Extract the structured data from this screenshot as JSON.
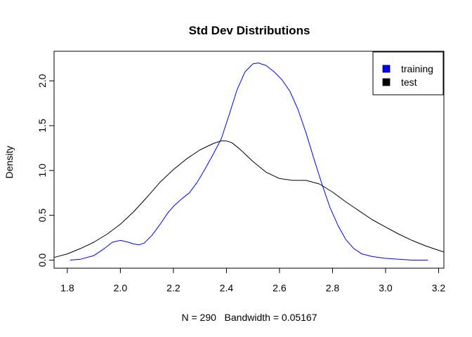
{
  "chart_data": {
    "type": "line",
    "title": "Std Dev Distributions",
    "xlabel": "N = 290   Bandwidth = 0.05167",
    "ylabel": "Density",
    "xlim": [
      1.75,
      3.22
    ],
    "ylim": [
      -0.09,
      2.33
    ],
    "x_ticks": [
      1.8,
      2.0,
      2.2,
      2.4,
      2.6,
      2.8,
      3.0,
      3.2
    ],
    "x_tick_labels": [
      "1.8",
      "2.0",
      "2.2",
      "2.4",
      "2.6",
      "2.8",
      "3.0",
      "3.2"
    ],
    "y_ticks": [
      0.0,
      0.5,
      1.0,
      1.5,
      2.0
    ],
    "y_tick_labels": [
      "0.0",
      "0.5",
      "1.0",
      "1.5",
      "2.0"
    ],
    "grid": false,
    "legend_position": "top-right",
    "legend": [
      {
        "label": "training",
        "color": "#0000ff"
      },
      {
        "label": "test",
        "color": "#000000"
      }
    ],
    "series": [
      {
        "name": "training",
        "color": "#0000ff",
        "x": [
          1.81,
          1.85,
          1.9,
          1.94,
          1.97,
          2.0,
          2.03,
          2.05,
          2.07,
          2.09,
          2.12,
          2.15,
          2.18,
          2.2,
          2.23,
          2.26,
          2.29,
          2.32,
          2.35,
          2.38,
          2.41,
          2.44,
          2.47,
          2.5,
          2.52,
          2.55,
          2.58,
          2.61,
          2.64,
          2.67,
          2.7,
          2.73,
          2.76,
          2.79,
          2.82,
          2.85,
          2.88,
          2.91,
          2.95,
          3.0,
          3.05,
          3.1,
          3.16
        ],
        "y": [
          0.0,
          0.01,
          0.05,
          0.13,
          0.2,
          0.22,
          0.2,
          0.18,
          0.17,
          0.19,
          0.28,
          0.4,
          0.53,
          0.6,
          0.68,
          0.75,
          0.87,
          1.02,
          1.18,
          1.35,
          1.62,
          1.9,
          2.1,
          2.19,
          2.2,
          2.17,
          2.1,
          2.01,
          1.88,
          1.68,
          1.42,
          1.13,
          0.85,
          0.59,
          0.39,
          0.23,
          0.13,
          0.07,
          0.04,
          0.02,
          0.01,
          0.0,
          0.0
        ]
      },
      {
        "name": "test",
        "color": "#000000",
        "x": [
          1.75,
          1.8,
          1.85,
          1.9,
          1.95,
          2.0,
          2.05,
          2.1,
          2.15,
          2.2,
          2.25,
          2.3,
          2.35,
          2.38,
          2.4,
          2.42,
          2.45,
          2.5,
          2.55,
          2.6,
          2.65,
          2.7,
          2.75,
          2.8,
          2.85,
          2.9,
          2.95,
          3.0,
          3.05,
          3.1,
          3.15,
          3.2,
          3.22
        ],
        "y": [
          0.03,
          0.07,
          0.13,
          0.2,
          0.29,
          0.4,
          0.54,
          0.7,
          0.87,
          1.01,
          1.13,
          1.23,
          1.3,
          1.33,
          1.33,
          1.31,
          1.24,
          1.1,
          0.98,
          0.91,
          0.89,
          0.89,
          0.85,
          0.76,
          0.65,
          0.55,
          0.45,
          0.37,
          0.29,
          0.22,
          0.16,
          0.11,
          0.09
        ]
      }
    ]
  }
}
